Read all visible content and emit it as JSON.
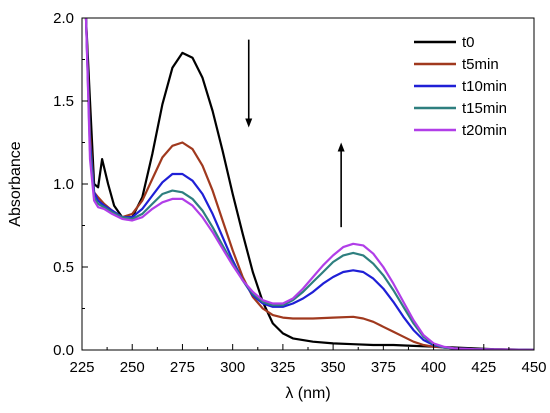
{
  "chart_data": {
    "type": "line",
    "title": "",
    "xlabel": "λ (nm)",
    "ylabel": "Absorbance",
    "xlim": [
      225,
      450
    ],
    "ylim": [
      0,
      2.0
    ],
    "xticks": [
      "225",
      "250",
      "275",
      "300",
      "325",
      "350",
      "375",
      "400",
      "425",
      "450"
    ],
    "yticks": [
      "0.0",
      "0.5",
      "1.0",
      "1.5",
      "2.0"
    ],
    "grid": false,
    "legend_position": "top-right",
    "series": [
      {
        "name": "t0",
        "color": "#000000",
        "x": [
          227,
          229,
          231,
          233,
          235,
          238,
          241,
          245,
          250,
          255,
          260,
          265,
          270,
          275,
          280,
          285,
          290,
          295,
          300,
          305,
          310,
          315,
          320,
          325,
          330,
          340,
          350,
          360,
          370,
          380,
          390,
          400,
          410,
          420,
          430,
          440,
          450
        ],
        "y": [
          2.0,
          1.5,
          1.0,
          0.98,
          1.15,
          1.0,
          0.87,
          0.8,
          0.8,
          0.92,
          1.18,
          1.48,
          1.7,
          1.79,
          1.76,
          1.64,
          1.44,
          1.2,
          0.94,
          0.7,
          0.47,
          0.29,
          0.16,
          0.1,
          0.07,
          0.05,
          0.04,
          0.035,
          0.03,
          0.03,
          0.025,
          0.02,
          0.015,
          0.01,
          0.005,
          0.003,
          0.0
        ]
      },
      {
        "name": "t5min",
        "color": "#a0391e",
        "x": [
          227,
          229,
          231,
          233,
          236,
          240,
          245,
          250,
          255,
          260,
          265,
          270,
          275,
          280,
          285,
          290,
          295,
          300,
          305,
          310,
          315,
          320,
          325,
          330,
          340,
          350,
          360,
          365,
          370,
          375,
          380,
          385,
          390,
          395,
          400,
          405,
          410,
          420,
          430,
          440,
          450
        ],
        "y": [
          2.0,
          1.3,
          0.95,
          0.92,
          0.88,
          0.84,
          0.8,
          0.82,
          0.9,
          1.03,
          1.16,
          1.23,
          1.25,
          1.21,
          1.11,
          0.96,
          0.78,
          0.6,
          0.44,
          0.32,
          0.25,
          0.21,
          0.195,
          0.19,
          0.19,
          0.195,
          0.2,
          0.19,
          0.17,
          0.14,
          0.11,
          0.08,
          0.05,
          0.03,
          0.02,
          0.015,
          0.01,
          0.005,
          0.003,
          0.002,
          0.0
        ]
      },
      {
        "name": "t10min",
        "color": "#1f1fd6",
        "x": [
          227,
          229,
          231,
          233,
          236,
          240,
          245,
          250,
          255,
          260,
          265,
          270,
          275,
          280,
          285,
          290,
          295,
          300,
          305,
          310,
          315,
          320,
          325,
          330,
          335,
          340,
          345,
          350,
          355,
          360,
          365,
          370,
          375,
          380,
          385,
          390,
          395,
          400,
          405,
          410,
          420,
          430,
          440,
          450
        ],
        "y": [
          2.0,
          1.25,
          0.95,
          0.9,
          0.87,
          0.84,
          0.8,
          0.8,
          0.85,
          0.93,
          1.01,
          1.06,
          1.06,
          1.02,
          0.94,
          0.82,
          0.68,
          0.54,
          0.42,
          0.33,
          0.28,
          0.26,
          0.26,
          0.28,
          0.31,
          0.35,
          0.4,
          0.44,
          0.47,
          0.48,
          0.47,
          0.43,
          0.37,
          0.29,
          0.2,
          0.12,
          0.06,
          0.03,
          0.015,
          0.01,
          0.005,
          0.003,
          0.002,
          0.0
        ]
      },
      {
        "name": "t15min",
        "color": "#2e7f7f",
        "x": [
          227,
          229,
          231,
          233,
          236,
          240,
          245,
          250,
          255,
          260,
          265,
          270,
          275,
          280,
          285,
          290,
          295,
          300,
          305,
          310,
          315,
          320,
          325,
          330,
          335,
          340,
          345,
          350,
          355,
          360,
          365,
          370,
          375,
          380,
          385,
          390,
          395,
          400,
          405,
          410,
          420,
          430,
          440,
          450
        ],
        "y": [
          2.0,
          1.2,
          0.92,
          0.88,
          0.86,
          0.83,
          0.8,
          0.79,
          0.82,
          0.88,
          0.94,
          0.96,
          0.95,
          0.91,
          0.84,
          0.74,
          0.63,
          0.52,
          0.42,
          0.34,
          0.29,
          0.27,
          0.27,
          0.3,
          0.35,
          0.41,
          0.47,
          0.53,
          0.57,
          0.585,
          0.57,
          0.52,
          0.45,
          0.36,
          0.26,
          0.16,
          0.08,
          0.035,
          0.015,
          0.01,
          0.005,
          0.003,
          0.002,
          0.0
        ]
      },
      {
        "name": "t20min",
        "color": "#b13ee8",
        "x": [
          227,
          229,
          231,
          233,
          236,
          240,
          245,
          250,
          255,
          260,
          265,
          270,
          275,
          280,
          285,
          290,
          295,
          300,
          305,
          310,
          315,
          320,
          325,
          330,
          335,
          340,
          345,
          350,
          355,
          360,
          365,
          370,
          375,
          380,
          385,
          390,
          395,
          400,
          405,
          410,
          420,
          430,
          440,
          450
        ],
        "y": [
          2.0,
          1.15,
          0.9,
          0.86,
          0.85,
          0.82,
          0.79,
          0.78,
          0.8,
          0.85,
          0.89,
          0.91,
          0.91,
          0.87,
          0.8,
          0.71,
          0.61,
          0.51,
          0.42,
          0.35,
          0.3,
          0.28,
          0.28,
          0.31,
          0.37,
          0.44,
          0.51,
          0.57,
          0.62,
          0.64,
          0.63,
          0.58,
          0.5,
          0.4,
          0.29,
          0.18,
          0.09,
          0.04,
          0.02,
          0.01,
          0.005,
          0.003,
          0.002,
          0.0
        ]
      }
    ],
    "annotations": [
      {
        "type": "arrow",
        "direction": "down",
        "x": 308,
        "y_from": 1.87,
        "y_to": 1.34
      },
      {
        "type": "arrow",
        "direction": "up",
        "x": 354,
        "y_from": 0.74,
        "y_to": 1.25
      }
    ]
  }
}
